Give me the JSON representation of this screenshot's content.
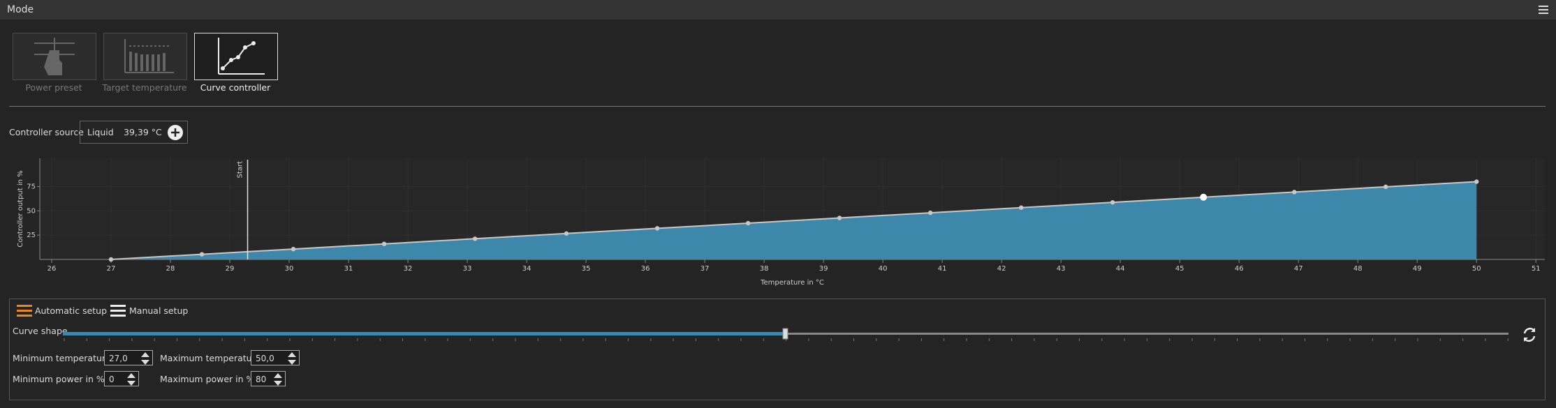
{
  "header": {
    "title": "Mode"
  },
  "modes": [
    {
      "label": "Power preset"
    },
    {
      "label": "Target temperature"
    },
    {
      "label": "Curve controller"
    }
  ],
  "controller_source": {
    "label": "Controller source",
    "sensor": "Liquid",
    "reading": "39,39 °C"
  },
  "chart_data": {
    "type": "area",
    "x_label": "Temperature in °C",
    "y_label": "Controller output in %",
    "x": [
      27,
      28.53,
      30.07,
      31.6,
      33.13,
      34.67,
      36.2,
      37.73,
      39.27,
      40.8,
      42.33,
      43.87,
      45.4,
      46.93,
      48.47,
      50
    ],
    "values": [
      0,
      5.3,
      10.7,
      16,
      21.3,
      26.7,
      32,
      37.3,
      42.7,
      48,
      53.3,
      58.7,
      64,
      69.3,
      74.7,
      80
    ],
    "color": "#3d88aa",
    "line_color": "#c8c8c8",
    "selected_point": 12,
    "xlim": [
      25.8,
      51.15
    ],
    "xticks": [
      26,
      27,
      28,
      29,
      30,
      31,
      32,
      33,
      34,
      35,
      36,
      37,
      38,
      39,
      40,
      41,
      42,
      43,
      44,
      45,
      46,
      47,
      48,
      49,
      50,
      51
    ],
    "ylim": [
      0,
      104
    ],
    "yticks": [
      25,
      50,
      75
    ],
    "grid": true,
    "markers": [
      {
        "x": 29.3,
        "label": "Start"
      }
    ]
  },
  "setup": {
    "automatic": "Automatic setup",
    "manual": "Manual setup",
    "curve_shape": "Curve shape",
    "min_temp_label": "Minimum temperature",
    "min_temp": "27,0",
    "max_temp_label": "Maximum temperature",
    "max_temp": "50,0",
    "min_power_label": "Minimum power in %",
    "min_power": "0",
    "max_power_label": "Maximum power in %",
    "max_power": "80"
  }
}
